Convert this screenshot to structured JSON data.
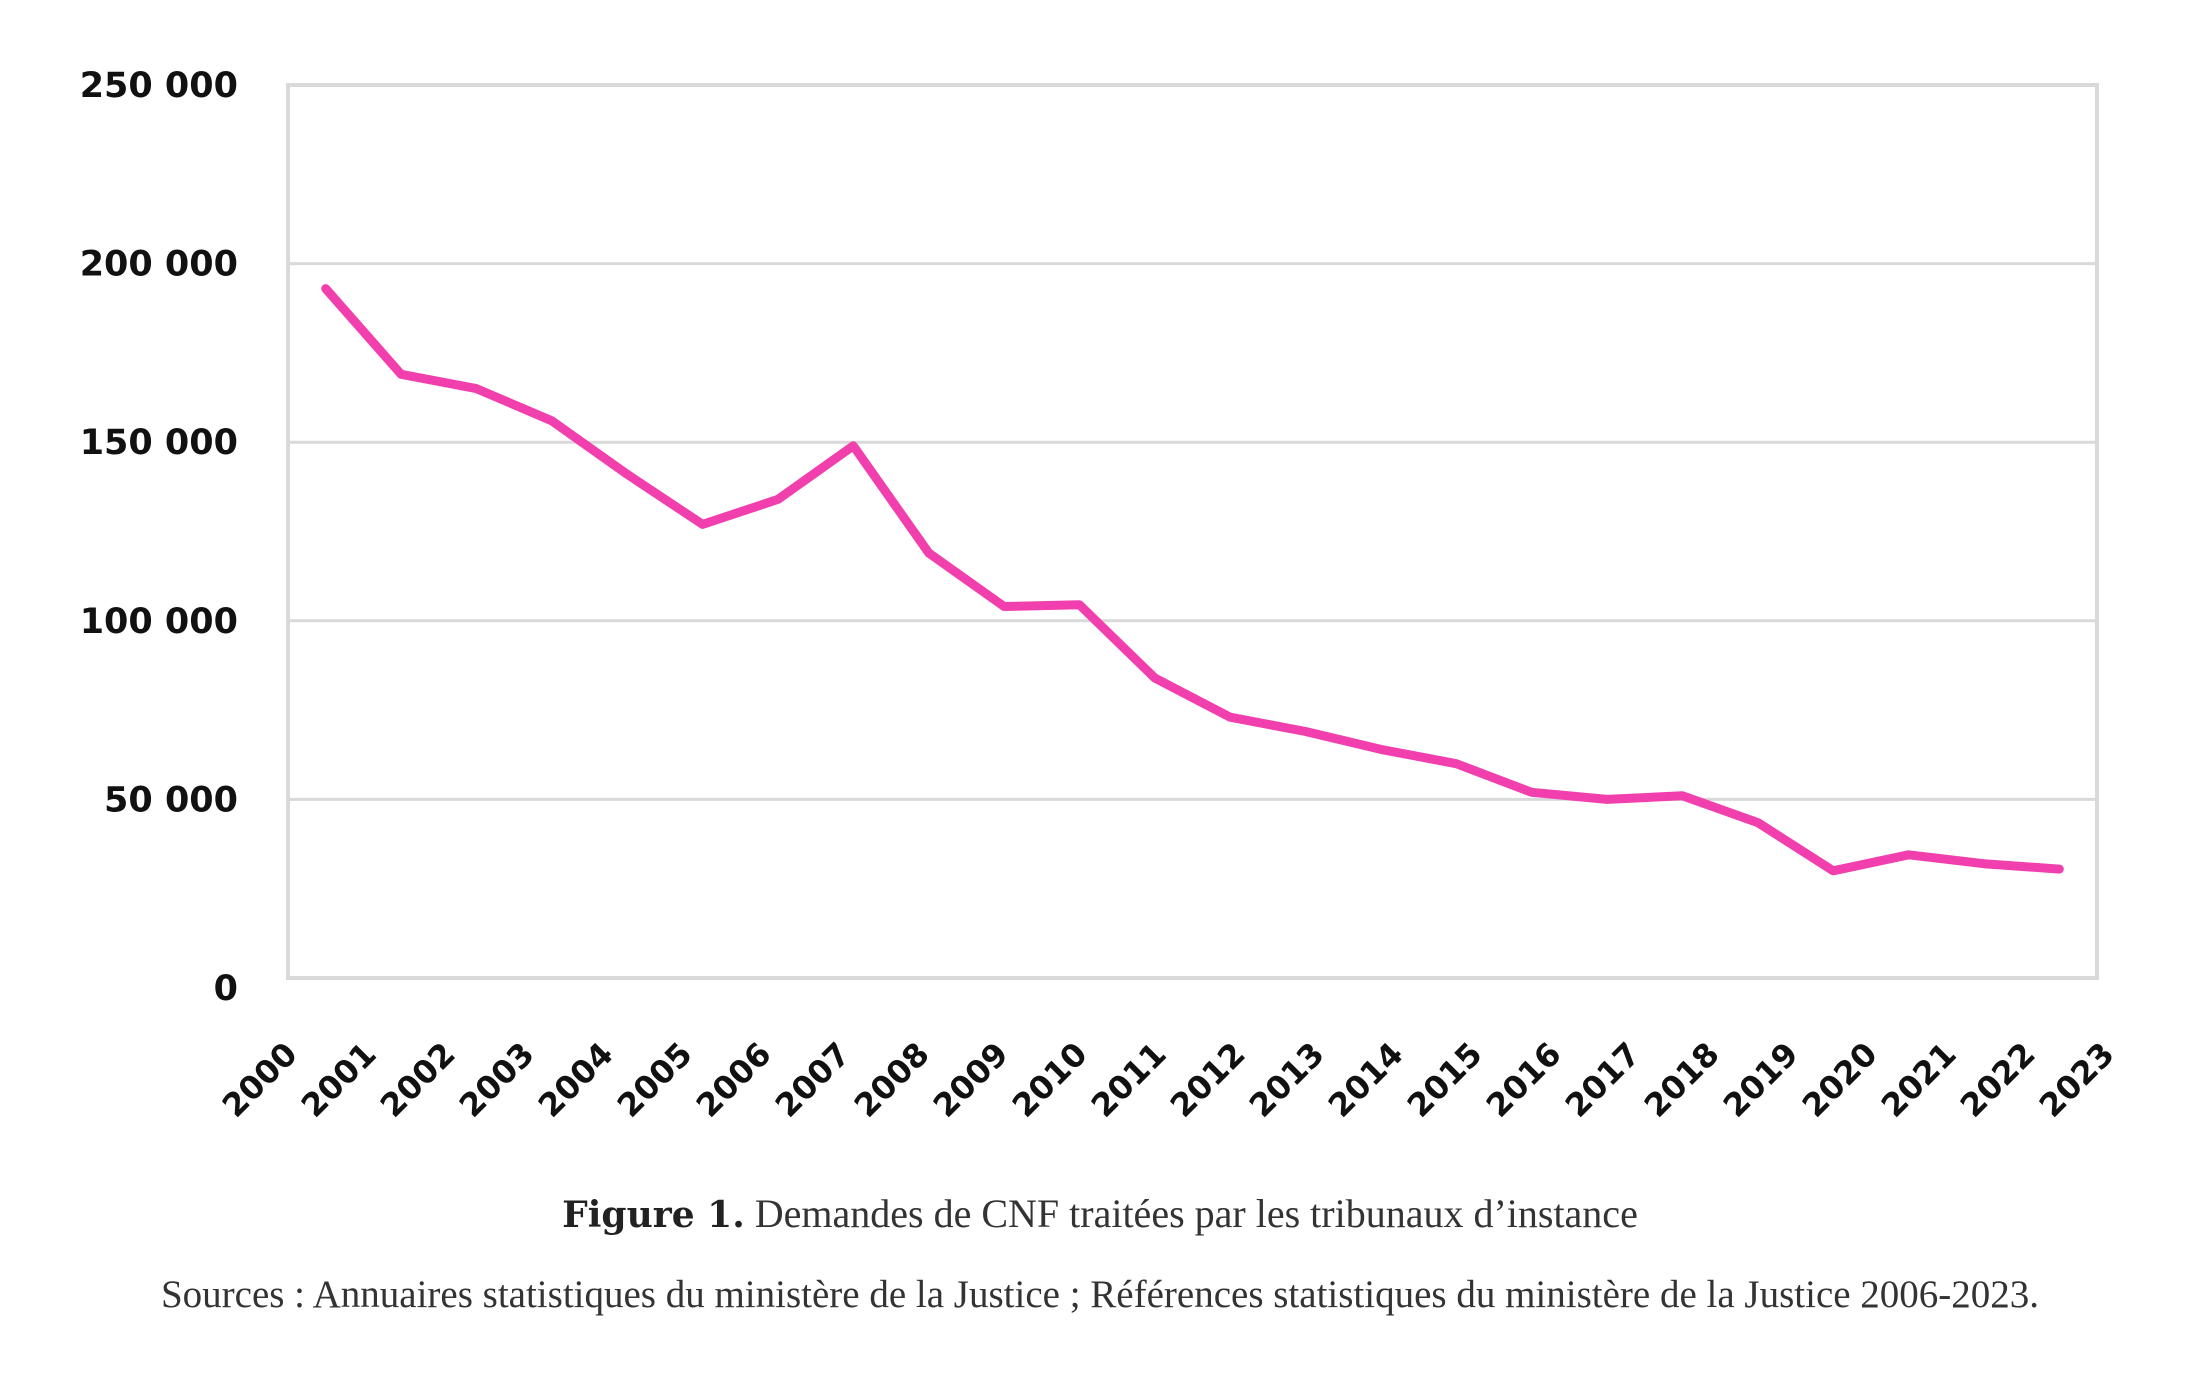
{
  "chart_data": {
    "type": "line",
    "title": "",
    "xlabel": "",
    "ylabel": "",
    "ylim": [
      0,
      250000
    ],
    "yticks": [
      0,
      50000,
      100000,
      150000,
      200000,
      250000
    ],
    "ytick_labels": [
      "0",
      "50 000",
      "100 000",
      "150 000",
      "200 000",
      "250 000"
    ],
    "grid": true,
    "legend": "none",
    "x": [
      "2000",
      "2001",
      "2002",
      "2003",
      "2004",
      "2005",
      "2006",
      "2007",
      "2008",
      "2009",
      "2010",
      "2011",
      "2012",
      "2013",
      "2014",
      "2015",
      "2016",
      "2017",
      "2018",
      "2019",
      "2020",
      "2021",
      "2022",
      "2023"
    ],
    "series": [
      {
        "name": "Demandes de CNF traitées",
        "color": "#F23FAE",
        "values": [
          193000,
          169000,
          165000,
          156000,
          141000,
          127000,
          134000,
          149000,
          119000,
          104000,
          104500,
          84000,
          73000,
          69000,
          64000,
          60000,
          52000,
          50000,
          51000,
          43500,
          30000,
          34500,
          32000,
          30500
        ]
      }
    ]
  },
  "caption": {
    "figure_label": "Figure 1.",
    "text": "Demandes de CNF traitées par les tribunaux d’instance"
  },
  "sources": "Sources : Annuaires statistiques du ministère de la Justice ; Références statistiques du ministère de la Justice 2006-2023.",
  "colors": {
    "line": "#F23FAE",
    "grid": "#D9D9D9",
    "frame": "#D9D9D9"
  }
}
